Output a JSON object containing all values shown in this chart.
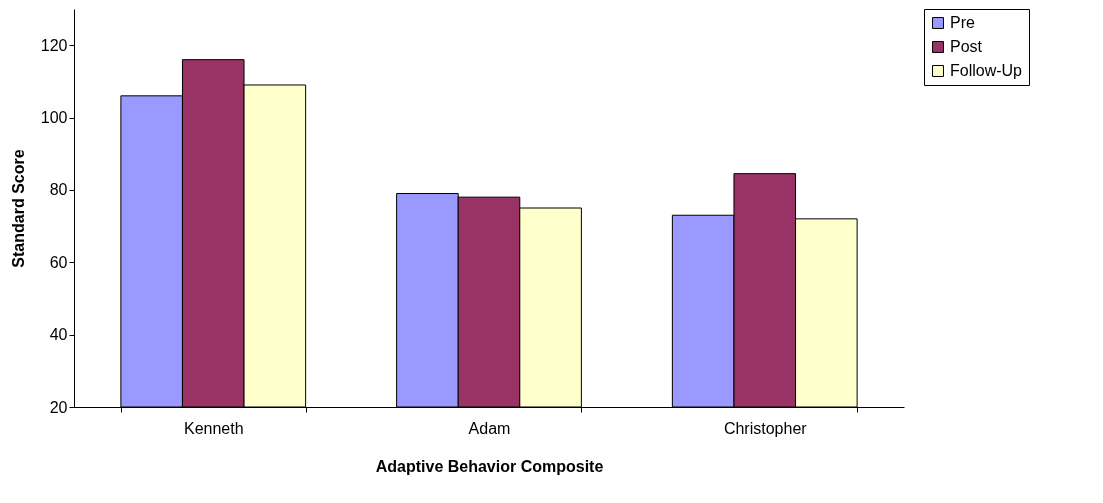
{
  "chart_data": {
    "type": "bar",
    "xlabel": "Adaptive Behavior Composite",
    "ylabel": "Standard Score",
    "categories": [
      "Kenneth",
      "Adam",
      "Christopher"
    ],
    "series": [
      {
        "name": "Pre",
        "color": "#9999ff",
        "values": [
          106,
          79,
          73
        ]
      },
      {
        "name": "Post",
        "color": "#993366",
        "values": [
          116,
          78,
          84.5
        ]
      },
      {
        "name": "Follow-Up",
        "color": "#ffffcc",
        "values": [
          109,
          75,
          72
        ]
      }
    ],
    "ylim": [
      20,
      130
    ],
    "yticks": [
      20,
      40,
      60,
      80,
      100,
      120
    ],
    "grid": false,
    "legend": "right"
  }
}
